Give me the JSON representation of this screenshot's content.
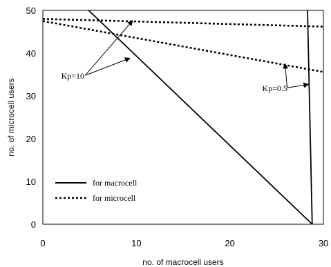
{
  "chart_data": {
    "type": "line",
    "xlabel": "no. of macrocell users",
    "ylabel": "no. of microcell users",
    "xlim": [
      0,
      30
    ],
    "ylim": [
      0,
      50
    ],
    "xticks": [
      0,
      10,
      20,
      30
    ],
    "yticks": [
      0,
      10,
      20,
      30,
      40,
      50
    ],
    "grid": false,
    "legend_position": "bottom-left",
    "legend": [
      {
        "label": "for macrocell",
        "style": "solid"
      },
      {
        "label": "for microcell",
        "style": "dotted"
      }
    ],
    "series": [
      {
        "group": "Kp=10",
        "style": "solid",
        "points": [
          [
            4.9,
            50
          ],
          [
            28.8,
            0
          ]
        ]
      },
      {
        "group": "Kp=10",
        "style": "dotted",
        "points": [
          [
            0,
            47.5
          ],
          [
            30,
            35.6
          ]
        ]
      },
      {
        "group": "Kp=0.5",
        "style": "solid",
        "points": [
          [
            28.3,
            50
          ],
          [
            28.8,
            0
          ]
        ]
      },
      {
        "group": "Kp=0.5",
        "style": "dotted",
        "points": [
          [
            0,
            48
          ],
          [
            30,
            46.2
          ]
        ]
      }
    ],
    "annotations": [
      {
        "text": "Kp=10",
        "label_at": [
          3.2,
          34.0
        ],
        "arrow_targets": [
          [
            9.6,
            47.6
          ],
          [
            9.3,
            38.8
          ]
        ]
      },
      {
        "text": "Kp=0.5",
        "label_at": [
          24.8,
          31.1
        ],
        "arrow_targets": [
          [
            25.9,
            37.5
          ],
          [
            28.4,
            32.7
          ]
        ]
      }
    ]
  }
}
